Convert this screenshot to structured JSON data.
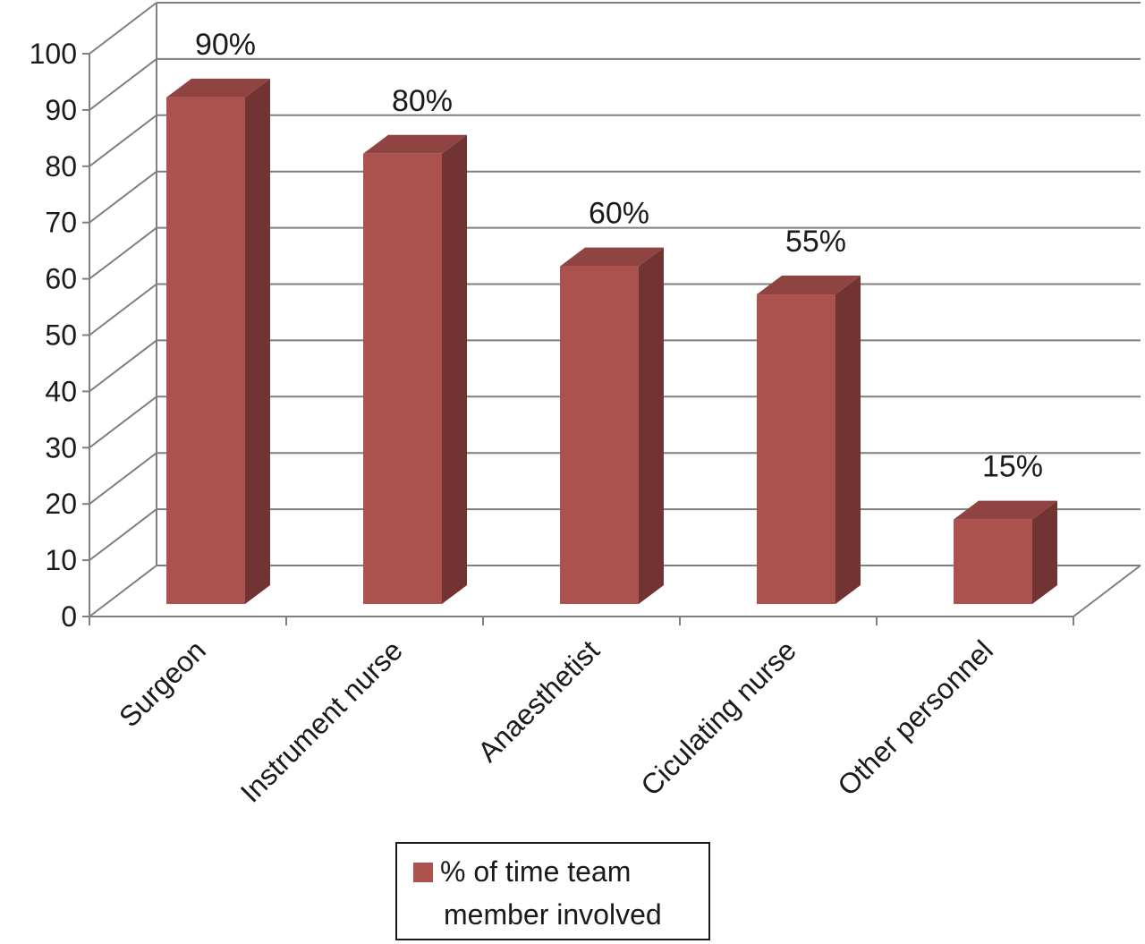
{
  "chart_data": {
    "type": "bar",
    "categories": [
      "Surgeon",
      "Instrument nurse",
      "Anaesthetist",
      "Ciculating nurse",
      "Other personnel"
    ],
    "series": [
      {
        "name": "% of time team member involved",
        "values": [
          90,
          80,
          60,
          55,
          15
        ]
      }
    ],
    "data_labels": [
      "90%",
      "80%",
      "60%",
      "55%",
      "15%"
    ],
    "yticks": [
      "0",
      "10",
      "20",
      "30",
      "40",
      "50",
      "60",
      "70",
      "80",
      "90",
      "100"
    ],
    "ylim": [
      0,
      100
    ],
    "grid": true,
    "legend": {
      "placement": "bottom",
      "lines": [
        "% of  time team",
        "member involved"
      ]
    },
    "colors": {
      "bar_front": "#ab524f",
      "bar_side": "#713432",
      "bar_top": "#8f4441",
      "grid": "#7f7f7f"
    }
  }
}
